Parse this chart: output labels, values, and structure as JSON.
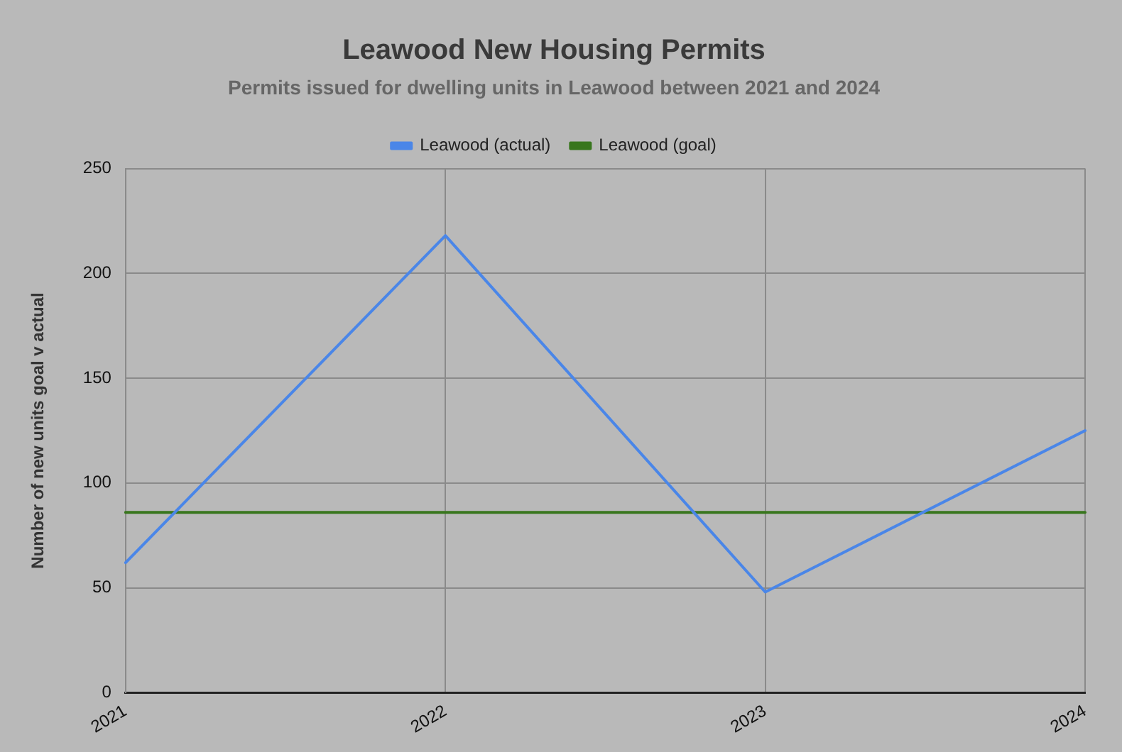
{
  "chart_data": {
    "type": "line",
    "title": "Leawood New Housing Permits",
    "subtitle": "Permits issued for dwelling units in Leawood between 2021 and 2024",
    "ylabel": "Number of new units goal v actual",
    "categories": [
      "2021",
      "2022",
      "2023",
      "2024"
    ],
    "series": [
      {
        "name": "Leawood (actual)",
        "color": "#4a86e8",
        "values": [
          62,
          218,
          48,
          125
        ]
      },
      {
        "name": "Leawood (goal)",
        "color": "#38761d",
        "values": [
          86,
          86,
          86,
          86
        ]
      }
    ],
    "ylim": [
      0,
      250
    ],
    "yticks": [
      0,
      50,
      100,
      150,
      200,
      250
    ],
    "grid": true,
    "legend": "top",
    "marker": "none",
    "line_style": "solid"
  }
}
